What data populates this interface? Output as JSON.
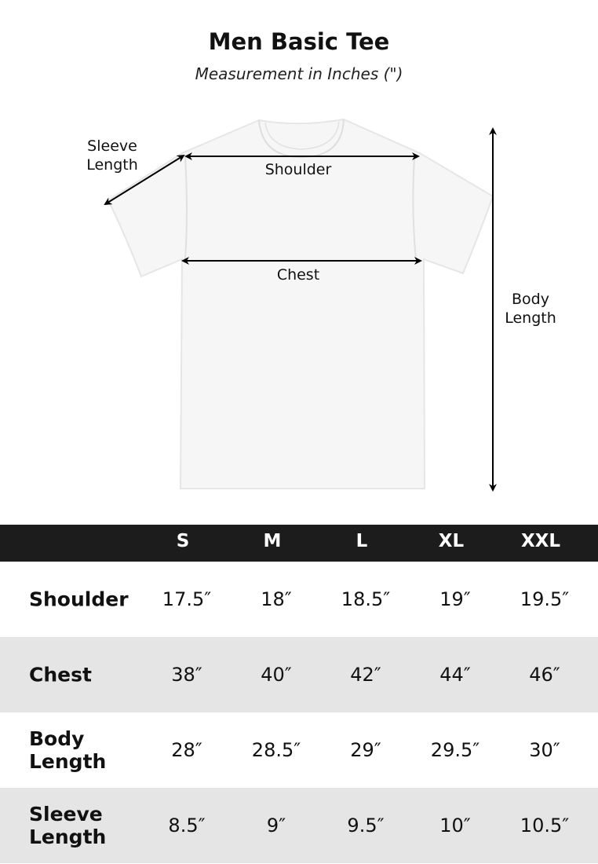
{
  "header": {
    "title": "Men Basic Tee",
    "subtitle": "Measurement in Inches (\")"
  },
  "diagram": {
    "labels": {
      "sleeve_line1": "Sleeve",
      "sleeve_line2": "Length",
      "shoulder": "Shoulder",
      "chest": "Chest",
      "body_line1": "Body",
      "body_line2": "Length"
    }
  },
  "table": {
    "sizes": [
      "S",
      "M",
      "L",
      "XL",
      "XXL"
    ],
    "rows": [
      {
        "label": "Shoulder",
        "values": [
          "17.5″",
          "18″",
          "18.5″",
          "19″",
          "19.5″"
        ]
      },
      {
        "label": "Chest",
        "values": [
          "38″",
          "40″",
          "42″",
          "44″",
          "46″"
        ]
      },
      {
        "label": "Body Length",
        "values": [
          "28″",
          "28.5″",
          "29″",
          "29.5″",
          "30″"
        ]
      },
      {
        "label": "Sleeve Length",
        "values": [
          "8.5″",
          "9″",
          "9.5″",
          "10″",
          "10.5″"
        ]
      }
    ],
    "colors": {
      "header_bg": "#1c1c1c",
      "alt_row_bg": "#e5e5e5"
    }
  }
}
